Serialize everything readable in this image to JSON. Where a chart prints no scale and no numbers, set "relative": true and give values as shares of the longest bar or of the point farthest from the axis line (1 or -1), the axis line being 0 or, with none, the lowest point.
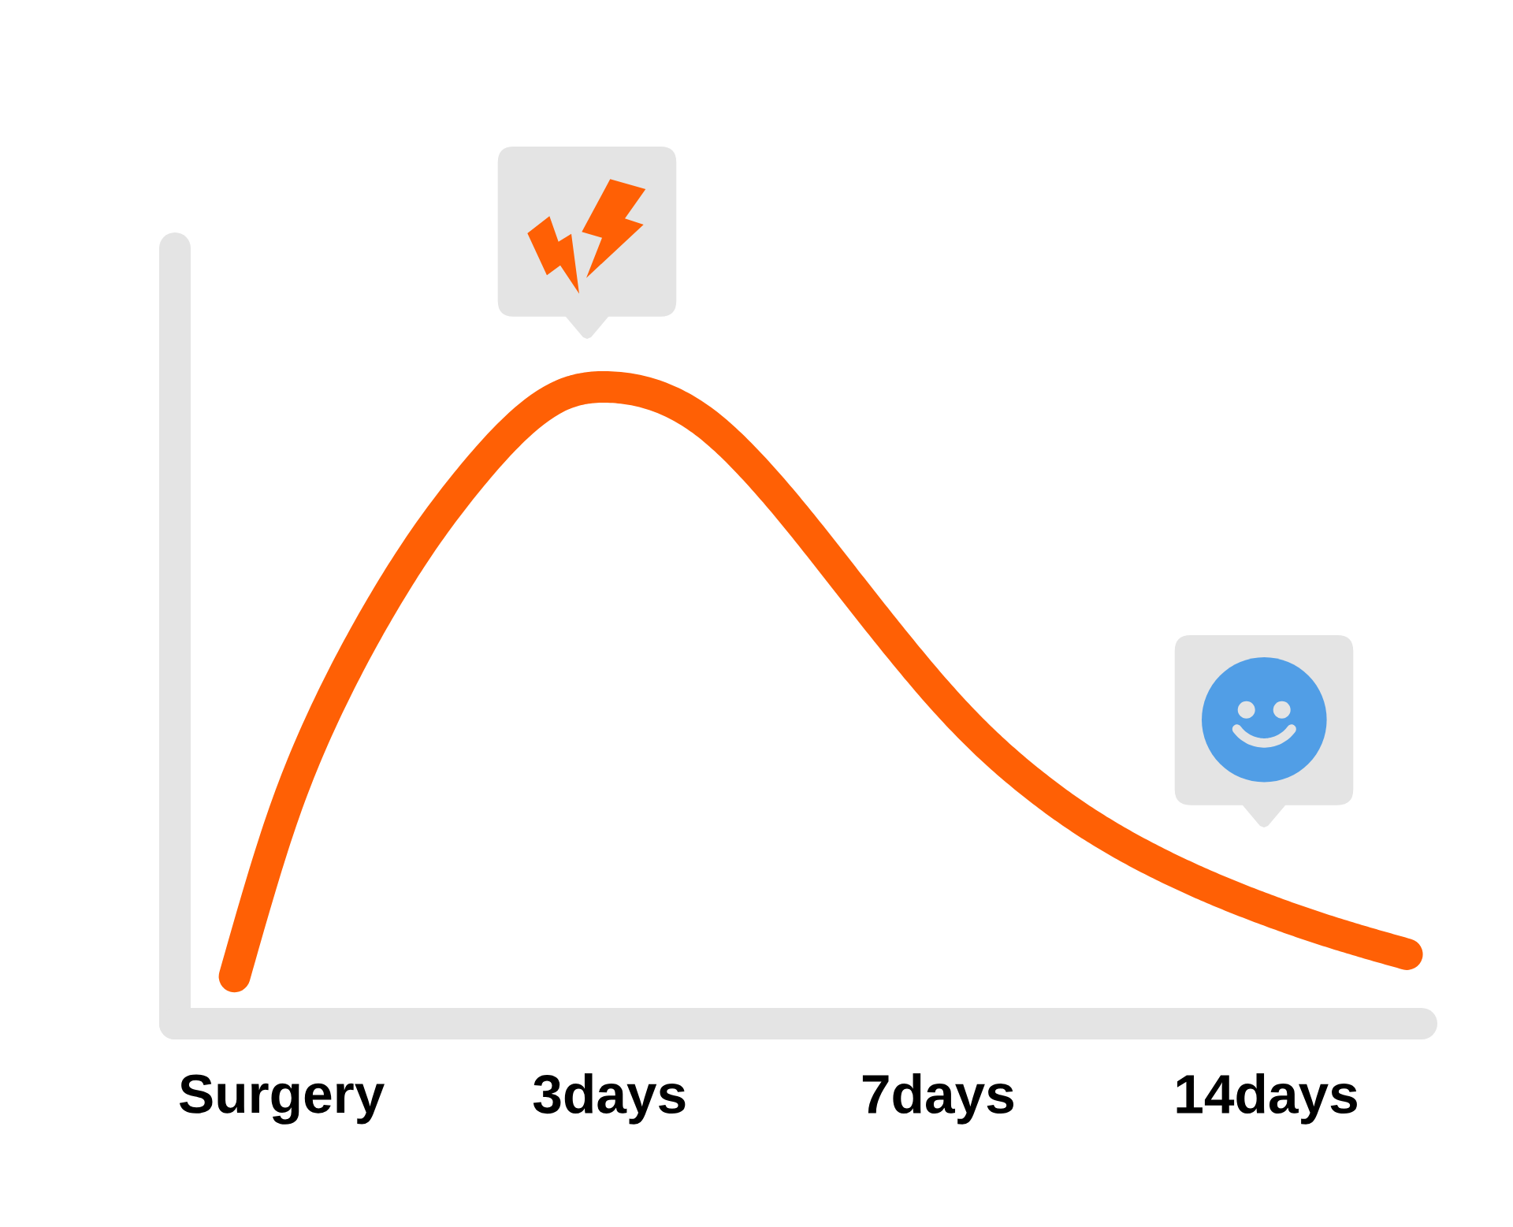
{
  "chart_data": {
    "type": "line",
    "relative": true,
    "categories": [
      null,
      "Surgery",
      null,
      null,
      null,
      null,
      null,
      null,
      "3days",
      null,
      null,
      null,
      null,
      null,
      null,
      "7days",
      null,
      null,
      null,
      null,
      null,
      null,
      "14days",
      null,
      null,
      null
    ],
    "series": [
      {
        "color": "#ff6005",
        "values": [
          0.074,
          0.319,
          0.499,
          0.639,
          0.757,
          0.855,
          0.936,
          0.988,
          1.0,
          0.986,
          0.946,
          0.878,
          0.793,
          0.7,
          0.607,
          0.519,
          0.442,
          0.378,
          0.324,
          0.279,
          0.241,
          0.208,
          0.179,
          0.153,
          0.13,
          0.109
        ]
      }
    ]
  }
}
